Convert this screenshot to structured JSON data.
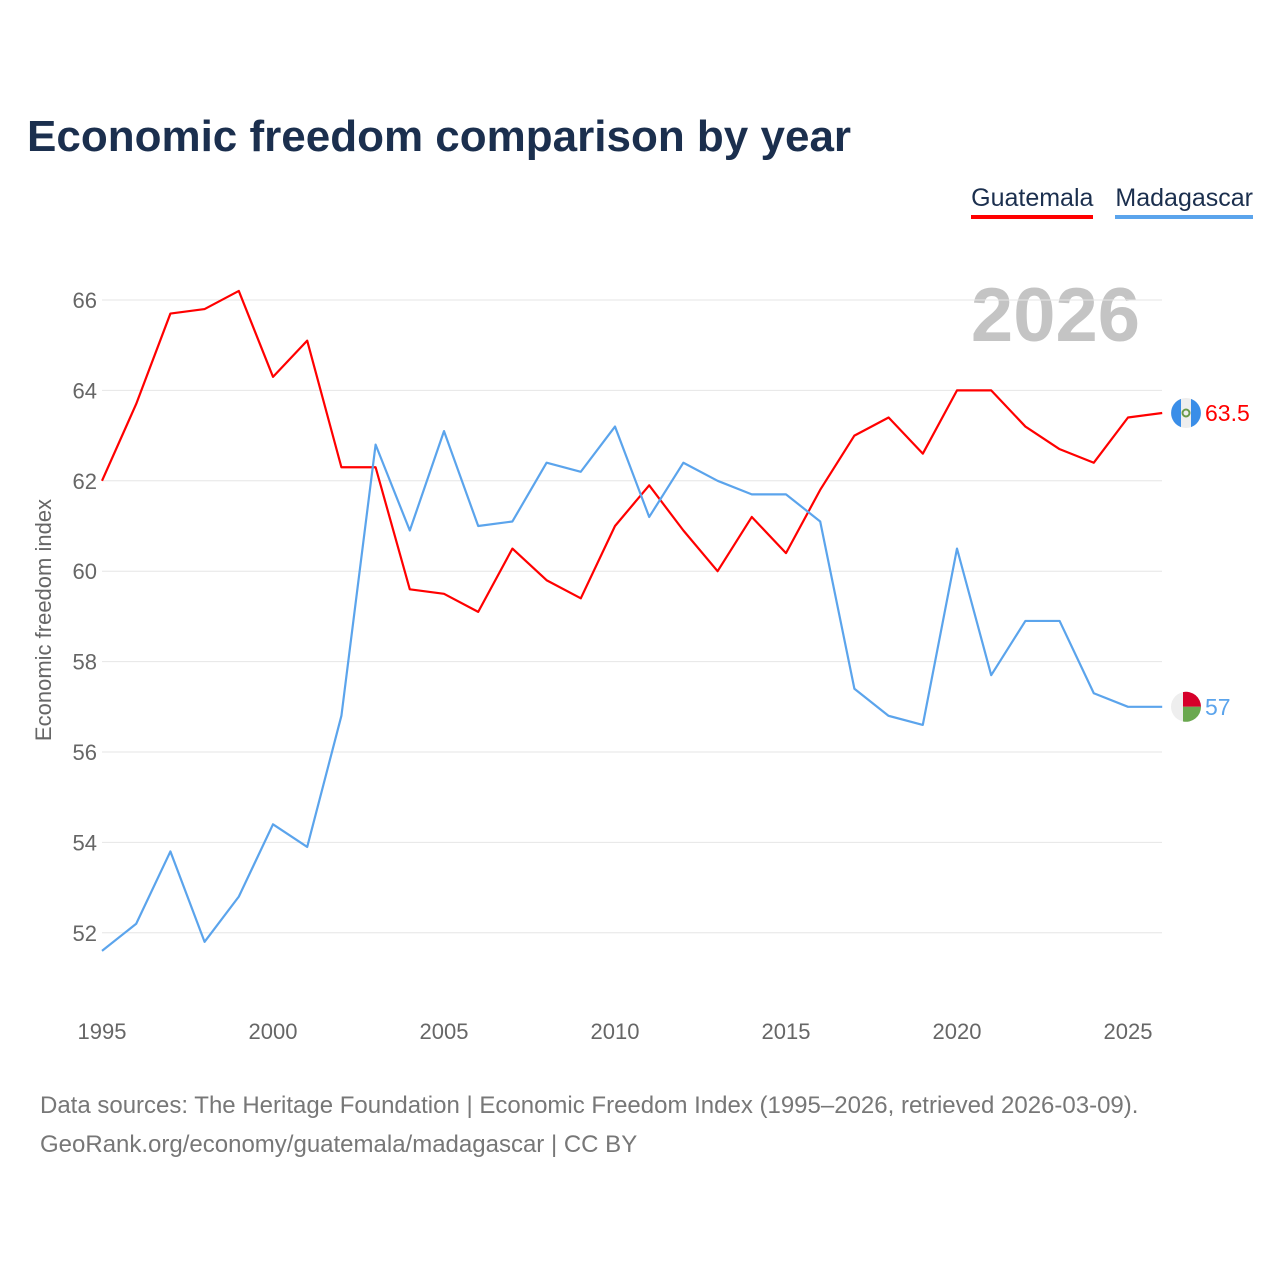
{
  "title": "Economic freedom comparison by year",
  "footer": {
    "line1": "Data sources: The Heritage Foundation | Economic Freedom Index (1995–2026, retrieved 2026-03-09).",
    "line2": "GeoRank.org/economy/guatemala/madagascar | CC BY"
  },
  "chart_data": {
    "type": "line",
    "title": "Economic freedom comparison by year",
    "xlabel": "",
    "ylabel": "Economic freedom index",
    "year_watermark": "2026",
    "xlim": [
      1995,
      2026
    ],
    "ylim": [
      51,
      67
    ],
    "xticks": [
      "1995",
      "2000",
      "2005",
      "2010",
      "2015",
      "2020",
      "2025"
    ],
    "yticks": [
      "52",
      "54",
      "56",
      "58",
      "60",
      "62",
      "64",
      "66"
    ],
    "legend": "top-right",
    "x": [
      1995,
      1996,
      1997,
      1998,
      1999,
      2000,
      2001,
      2002,
      2003,
      2004,
      2005,
      2006,
      2007,
      2008,
      2009,
      2010,
      2011,
      2012,
      2013,
      2014,
      2015,
      2016,
      2017,
      2018,
      2019,
      2020,
      2021,
      2022,
      2023,
      2024,
      2025,
      2026
    ],
    "series": [
      {
        "name": "Guatemala",
        "color": "#ff0000",
        "end_label": "63.5",
        "values": [
          62.0,
          63.7,
          65.7,
          65.8,
          66.2,
          64.3,
          65.1,
          62.3,
          62.3,
          59.6,
          59.5,
          59.1,
          60.5,
          59.8,
          59.4,
          61.0,
          61.9,
          60.9,
          60.0,
          61.2,
          60.4,
          61.8,
          63.0,
          63.4,
          62.6,
          64.0,
          64.0,
          63.2,
          62.7,
          62.4,
          63.4,
          63.5
        ]
      },
      {
        "name": "Madagascar",
        "color": "#5ba4ec",
        "end_label": "57",
        "values": [
          51.6,
          52.2,
          53.8,
          51.8,
          52.8,
          54.4,
          53.9,
          56.8,
          62.8,
          60.9,
          63.1,
          61.0,
          61.1,
          62.4,
          62.2,
          63.2,
          61.2,
          62.4,
          62.0,
          61.7,
          61.7,
          61.1,
          57.4,
          56.8,
          56.6,
          60.5,
          57.7,
          58.9,
          58.9,
          57.3,
          57.0,
          57.0
        ]
      }
    ]
  }
}
